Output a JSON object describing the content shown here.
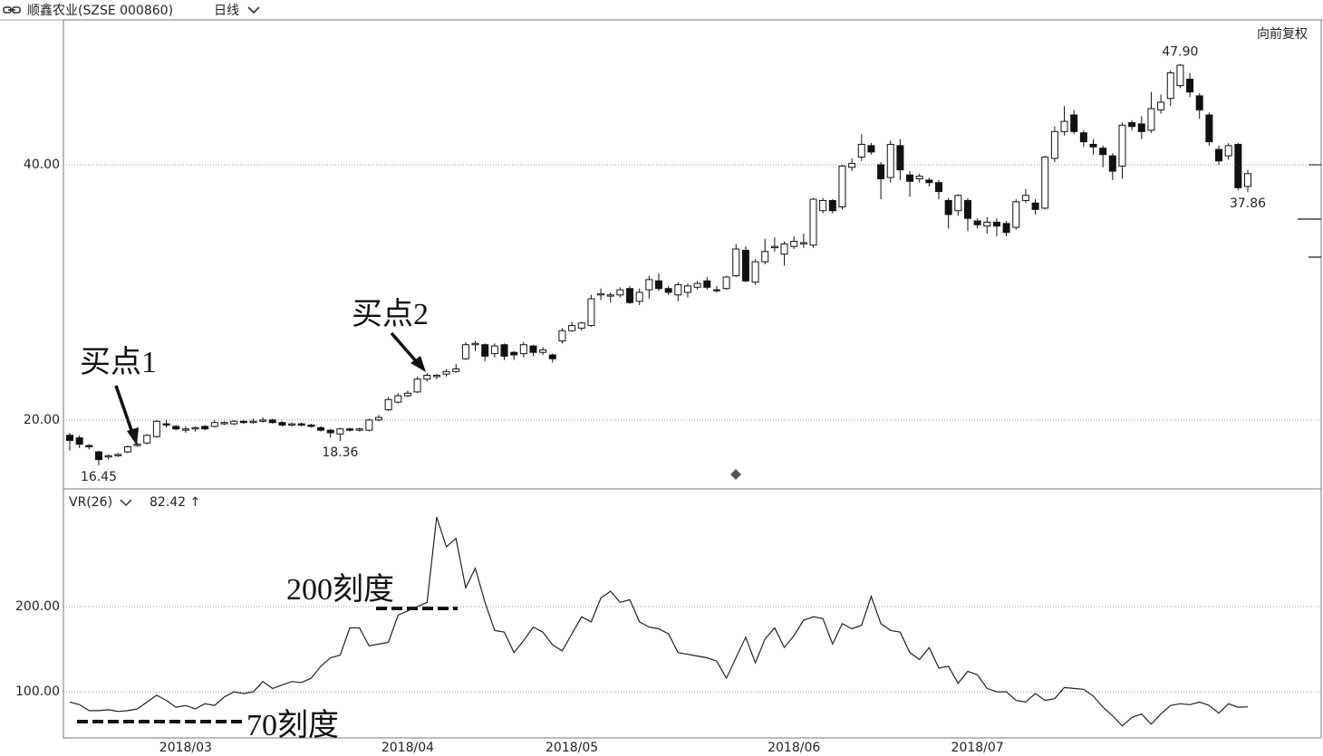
{
  "header": {
    "title": "顺鑫农业(SZSE 000860)",
    "period": "日线",
    "adjust": "向前复权"
  },
  "chart_data": [
    {
      "type": "candlestick",
      "categories": [
        null,
        null,
        null,
        null,
        null,
        null,
        null,
        null,
        null,
        null,
        null,
        null,
        "2018/03",
        null,
        null,
        null,
        null,
        null,
        null,
        null,
        null,
        null,
        null,
        null,
        null,
        null,
        null,
        null,
        null,
        null,
        null,
        null,
        null,
        null,
        null,
        "2018/04",
        null,
        null,
        null,
        null,
        null,
        null,
        null,
        null,
        null,
        null,
        null,
        null,
        null,
        null,
        null,
        null,
        "2018/05",
        null,
        null,
        null,
        null,
        null,
        null,
        null,
        null,
        null,
        null,
        null,
        null,
        null,
        null,
        null,
        null,
        null,
        null,
        null,
        null,
        null,
        null,
        "2018/06",
        null,
        null,
        null,
        null,
        null,
        null,
        null,
        null,
        null,
        null,
        null,
        null,
        null,
        null,
        null,
        null,
        null,
        null,
        "2018/07",
        null,
        null,
        null,
        null,
        null,
        null,
        null,
        null,
        null,
        null,
        null,
        null,
        null,
        null,
        null,
        null,
        null,
        null,
        null,
        null,
        null,
        null,
        null,
        null,
        null,
        null,
        null,
        null
      ],
      "open": [
        18.8,
        18.6,
        18.0,
        17.5,
        17.1,
        17.2,
        17.5,
        18.0,
        18.2,
        18.7,
        19.7,
        19.5,
        19.2,
        19.3,
        19.5,
        19.5,
        19.7,
        19.7,
        19.9,
        19.8,
        19.9,
        20.0,
        19.8,
        19.6,
        19.7,
        19.6,
        19.4,
        19.2,
        18.9,
        19.3,
        19.2,
        19.2,
        20.0,
        20.8,
        21.4,
        21.9,
        22.2,
        23.2,
        23.4,
        23.6,
        23.8,
        24.8,
        25.9,
        25.9,
        25.2,
        25.9,
        25.3,
        25.2,
        25.8,
        25.3,
        25.1,
        26.2,
        27.0,
        27.2,
        27.4,
        29.8,
        29.7,
        29.8,
        30.3,
        29.3,
        30.2,
        30.9,
        30.3,
        29.8,
        30.0,
        30.4,
        30.9,
        30.2,
        30.3,
        31.3,
        33.3,
        30.8,
        32.4,
        33.5,
        33.0,
        33.6,
        33.8,
        33.7,
        36.4,
        37.2,
        36.7,
        39.8,
        40.6,
        41.5,
        40.0,
        39.0,
        41.5,
        39.2,
        38.9,
        38.8,
        38.6,
        37.2,
        36.4,
        37.2,
        35.6,
        35.2,
        35.5,
        35.4,
        35.1,
        37.2,
        37.0,
        36.6,
        40.5,
        42.6,
        43.9,
        42.5,
        41.6,
        41.3,
        40.7,
        39.9,
        43.3,
        43.2,
        42.7,
        44.3,
        45.2,
        46.2,
        46.7,
        45.4,
        43.9,
        41.2,
        40.7,
        41.6,
        38.3
      ],
      "close": [
        18.4,
        18.1,
        17.9,
        16.9,
        17.2,
        17.3,
        17.9,
        18.1,
        18.8,
        19.9,
        19.6,
        19.3,
        19.3,
        19.4,
        19.3,
        19.8,
        19.8,
        19.9,
        19.8,
        19.9,
        20.0,
        19.8,
        19.6,
        19.7,
        19.6,
        19.5,
        19.2,
        19.0,
        19.3,
        19.2,
        19.3,
        20.0,
        20.2,
        21.6,
        21.9,
        22.1,
        23.2,
        23.5,
        23.5,
        23.8,
        24.0,
        25.9,
        26.0,
        25.0,
        25.8,
        25.0,
        25.1,
        25.9,
        25.3,
        25.5,
        24.8,
        27.0,
        27.4,
        27.6,
        29.5,
        29.9,
        29.8,
        30.2,
        29.2,
        30.0,
        31.0,
        30.3,
        30.0,
        30.6,
        30.5,
        30.7,
        30.4,
        30.2,
        31.2,
        33.4,
        30.9,
        32.4,
        33.2,
        33.6,
        33.8,
        34.0,
        33.9,
        37.3,
        37.2,
        36.4,
        39.9,
        40.1,
        41.6,
        41.0,
        38.9,
        41.6,
        39.6,
        38.7,
        39.1,
        38.6,
        37.9,
        36.1,
        37.6,
        35.8,
        35.3,
        35.5,
        35.2,
        34.7,
        37.1,
        37.6,
        36.5,
        40.6,
        42.6,
        43.4,
        42.6,
        41.8,
        41.4,
        40.8,
        39.5,
        43.1,
        43.0,
        42.6,
        44.4,
        44.9,
        47.2,
        47.8,
        45.7,
        44.3,
        41.8,
        40.3,
        41.5,
        38.2,
        39.3
      ],
      "high": [
        19.0,
        18.8,
        18.1,
        17.6,
        17.3,
        17.4,
        18.0,
        18.2,
        18.9,
        20.0,
        20.0,
        19.6,
        19.5,
        19.5,
        19.6,
        20.0,
        19.9,
        20.0,
        20.0,
        20.1,
        20.2,
        20.1,
        19.9,
        19.8,
        19.8,
        19.7,
        19.5,
        19.3,
        19.4,
        19.4,
        19.4,
        20.1,
        20.4,
        21.8,
        22.1,
        22.3,
        23.4,
        23.7,
        23.6,
        24.0,
        24.4,
        26.1,
        26.2,
        26.0,
        26.0,
        26.0,
        25.4,
        26.1,
        25.9,
        25.7,
        25.2,
        27.2,
        27.7,
        27.7,
        29.8,
        30.3,
        30.0,
        30.4,
        30.5,
        30.3,
        31.3,
        31.5,
        30.5,
        30.8,
        30.7,
        30.9,
        31.2,
        30.5,
        31.3,
        33.8,
        33.6,
        32.6,
        34.2,
        34.3,
        34.0,
        34.4,
        34.6,
        37.4,
        37.4,
        37.3,
        40.0,
        40.5,
        42.4,
        41.7,
        40.2,
        41.9,
        42.0,
        39.5,
        39.3,
        39.0,
        38.8,
        37.4,
        37.7,
        37.4,
        35.8,
        35.9,
        35.8,
        35.6,
        37.3,
        38.1,
        37.3,
        40.7,
        43.0,
        44.6,
        44.3,
        42.7,
        42.0,
        41.5,
        40.9,
        43.3,
        43.5,
        43.8,
        45.7,
        45.5,
        47.4,
        47.9,
        47.2,
        45.6,
        44.1,
        41.5,
        41.7,
        41.7,
        39.6
      ],
      "low": [
        17.6,
        17.8,
        17.7,
        16.45,
        16.9,
        17.1,
        17.4,
        17.9,
        18.1,
        18.6,
        19.4,
        19.2,
        19.0,
        19.1,
        19.2,
        19.4,
        19.6,
        19.6,
        19.7,
        19.7,
        19.8,
        19.7,
        19.5,
        19.5,
        19.5,
        19.4,
        19.1,
        18.6,
        18.36,
        19.1,
        19.1,
        19.1,
        19.9,
        20.7,
        21.3,
        21.8,
        22.1,
        23.0,
        23.2,
        23.4,
        23.7,
        24.7,
        25.4,
        24.6,
        24.9,
        24.7,
        24.7,
        24.9,
        25.0,
        25.1,
        24.5,
        26.0,
        26.9,
        27.0,
        27.3,
        29.4,
        29.2,
        29.6,
        29.1,
        29.0,
        29.5,
        30.1,
        29.8,
        29.3,
        29.6,
        30.2,
        30.2,
        30.0,
        30.2,
        31.2,
        30.8,
        30.6,
        32.2,
        33.2,
        32.1,
        33.4,
        33.5,
        33.5,
        36.2,
        36.2,
        36.5,
        39.5,
        40.3,
        40.8,
        37.3,
        38.6,
        38.8,
        37.5,
        38.6,
        38.3,
        37.3,
        35.0,
        36.0,
        34.8,
        35.0,
        34.6,
        34.4,
        34.4,
        34.9,
        37.0,
        36.1,
        36.5,
        40.2,
        42.3,
        42.4,
        41.4,
        40.8,
        39.8,
        38.8,
        38.9,
        42.7,
        42.0,
        42.5,
        44.0,
        44.6,
        46.0,
        45.3,
        43.6,
        41.5,
        40.0,
        40.4,
        38.0,
        37.86
      ],
      "high_labels": [
        null,
        null,
        null,
        null,
        null,
        null,
        null,
        null,
        null,
        null,
        null,
        null,
        null,
        null,
        null,
        null,
        null,
        null,
        null,
        null,
        null,
        null,
        null,
        null,
        null,
        null,
        null,
        null,
        null,
        null,
        null,
        null,
        null,
        null,
        null,
        null,
        null,
        null,
        null,
        null,
        null,
        null,
        null,
        null,
        null,
        null,
        null,
        null,
        null,
        null,
        null,
        null,
        null,
        null,
        null,
        null,
        null,
        null,
        null,
        null,
        null,
        null,
        null,
        null,
        null,
        null,
        null,
        null,
        null,
        null,
        null,
        null,
        null,
        null,
        null,
        null,
        null,
        null,
        null,
        null,
        null,
        null,
        null,
        null,
        null,
        null,
        null,
        null,
        null,
        null,
        null,
        null,
        null,
        null,
        null,
        null,
        null,
        null,
        null,
        null,
        null,
        null,
        null,
        null,
        null,
        null,
        null,
        null,
        null,
        null,
        null,
        null,
        null,
        null,
        null,
        "47.90",
        null,
        null,
        null,
        null,
        null,
        null,
        null
      ],
      "low_labels": [
        null,
        null,
        null,
        "16.45",
        null,
        null,
        null,
        null,
        null,
        null,
        null,
        null,
        null,
        null,
        null,
        null,
        null,
        null,
        null,
        null,
        null,
        null,
        null,
        null,
        null,
        null,
        null,
        null,
        "18.36",
        null,
        null,
        null,
        null,
        null,
        null,
        null,
        null,
        null,
        null,
        null,
        null,
        null,
        null,
        null,
        null,
        null,
        null,
        null,
        null,
        null,
        null,
        null,
        null,
        null,
        null,
        null,
        null,
        null,
        null,
        null,
        null,
        null,
        null,
        null,
        null,
        null,
        null,
        null,
        null,
        null,
        null,
        null,
        null,
        null,
        null,
        null,
        null,
        null,
        null,
        null,
        null,
        null,
        null,
        null,
        null,
        null,
        null,
        null,
        null,
        null,
        null,
        null,
        null,
        null,
        null,
        null,
        null,
        null,
        null,
        null,
        null,
        null,
        null,
        null,
        null,
        null,
        null,
        null,
        null,
        null,
        null,
        null,
        null,
        null,
        null,
        null,
        null,
        null,
        null,
        null,
        null,
        null,
        "37.86"
      ],
      "up_color": "#ffffff",
      "down_color": "#111111",
      "line_color": "#111111",
      "ylim": [
        14.6,
        51.35
      ],
      "yticks": [
        {
          "value": 20,
          "label": "20.00"
        },
        {
          "value": 40,
          "label": "40.00"
        }
      ],
      "grid": true,
      "annotations": [
        "买点1",
        "买点2"
      ]
    },
    {
      "type": "line",
      "series": [
        {
          "name": "VR(26)",
          "color": "#222222",
          "values": [
            88,
            85,
            78,
            78,
            79,
            77,
            78,
            80,
            88,
            96,
            90,
            82,
            84,
            80,
            86,
            84,
            94,
            100,
            98,
            100,
            112,
            104,
            108,
            112,
            111,
            116,
            130,
            140,
            143,
            175,
            175,
            154,
            156,
            158,
            190,
            195,
            200,
            205,
            305,
            270,
            280,
            222,
            245,
            205,
            172,
            170,
            146,
            160,
            176,
            170,
            155,
            148,
            168,
            188,
            182,
            210,
            218,
            205,
            208,
            182,
            176,
            174,
            168,
            146,
            144,
            142,
            140,
            136,
            116,
            140,
            164,
            134,
            162,
            175,
            152,
            166,
            184,
            188,
            186,
            156,
            180,
            174,
            178,
            212,
            180,
            172,
            170,
            146,
            138,
            152,
            128,
            130,
            110,
            124,
            120,
            104,
            100,
            100,
            90,
            88,
            98,
            90,
            92,
            105,
            104,
            103,
            95,
            82,
            72,
            60,
            70,
            74,
            62,
            74,
            84,
            86,
            85,
            88,
            84,
            75,
            86,
            82,
            82.42
          ]
        }
      ],
      "current_label": "82.42 ↑",
      "ylim": [
        46,
        338
      ],
      "yticks": [
        {
          "value": 100,
          "label": "100.00"
        },
        {
          "value": 200,
          "label": "200.00"
        }
      ],
      "grid": true,
      "annotations": [
        "200刻度",
        "70刻度"
      ]
    }
  ]
}
